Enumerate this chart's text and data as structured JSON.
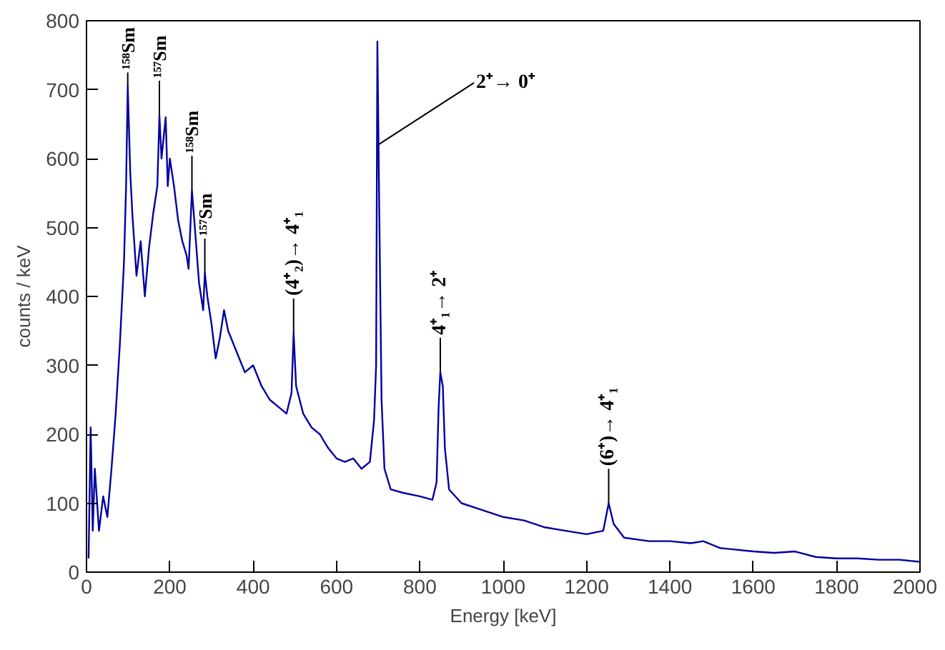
{
  "chart_data": {
    "type": "line",
    "xlabel": "Energy [keV]",
    "ylabel": "counts / keV",
    "xlim": [
      0,
      2000
    ],
    "xticks": [
      0,
      200,
      400,
      600,
      800,
      1000,
      1200,
      1400,
      1600,
      1800,
      2000
    ],
    "ylim": [
      0,
      800
    ],
    "yticks": [
      0,
      100,
      200,
      300,
      400,
      500,
      600,
      700,
      800
    ],
    "grid": false,
    "marker": "none",
    "line_style": "solid",
    "series": [
      {
        "color": "#0000a0",
        "x": [
          5,
          10,
          15,
          20,
          30,
          40,
          50,
          60,
          70,
          80,
          90,
          95,
          99,
          105,
          110,
          120,
          130,
          140,
          150,
          160,
          170,
          175,
          180,
          190,
          195,
          200,
          210,
          220,
          230,
          240,
          245,
          253,
          260,
          270,
          280,
          284,
          290,
          300,
          310,
          320,
          330,
          340,
          360,
          380,
          400,
          420,
          440,
          460,
          480,
          492,
          497,
          503,
          520,
          540,
          560,
          580,
          600,
          620,
          640,
          660,
          680,
          690,
          695,
          698,
          703,
          708,
          715,
          730,
          760,
          800,
          830,
          840,
          845,
          849,
          855,
          860,
          870,
          900,
          950,
          1000,
          1050,
          1100,
          1150,
          1200,
          1240,
          1253,
          1265,
          1290,
          1350,
          1400,
          1450,
          1480,
          1520,
          1600,
          1650,
          1700,
          1750,
          1800,
          1850,
          1900,
          1950,
          2000
        ],
        "values": [
          20,
          210,
          60,
          150,
          60,
          110,
          80,
          150,
          230,
          330,
          450,
          560,
          705,
          580,
          520,
          430,
          480,
          400,
          470,
          520,
          560,
          663,
          600,
          660,
          560,
          600,
          560,
          510,
          480,
          460,
          440,
          554,
          500,
          420,
          380,
          434,
          400,
          360,
          310,
          340,
          380,
          350,
          320,
          290,
          300,
          270,
          250,
          240,
          230,
          260,
          347,
          270,
          230,
          210,
          200,
          180,
          165,
          160,
          165,
          150,
          160,
          220,
          300,
          770,
          500,
          250,
          150,
          120,
          115,
          110,
          105,
          130,
          240,
          290,
          270,
          180,
          120,
          100,
          90,
          80,
          75,
          65,
          60,
          55,
          60,
          100,
          70,
          50,
          45,
          45,
          42,
          45,
          35,
          30,
          28,
          30,
          22,
          20,
          20,
          18,
          18,
          15
        ]
      }
    ],
    "annotations": [
      {
        "text": "¹⁵⁸Sm",
        "x": 99,
        "y": 705
      },
      {
        "text": "¹⁵⁷Sm",
        "x": 175,
        "y": 663
      },
      {
        "text": "¹⁵⁸Sm",
        "x": 253,
        "y": 554
      },
      {
        "text": "¹⁵⁷Sm",
        "x": 284,
        "y": 434
      },
      {
        "text": "(4⁺₂)→ 4⁺₁",
        "x": 497,
        "y": 347
      },
      {
        "text": "2⁺→ 0⁺",
        "x": 700,
        "y": 620
      },
      {
        "text": "4⁺₁→ 2⁺",
        "x": 849,
        "y": 290
      },
      {
        "text": "(6⁺)→ 4⁺₁",
        "x": 1253,
        "y": 100
      }
    ]
  }
}
